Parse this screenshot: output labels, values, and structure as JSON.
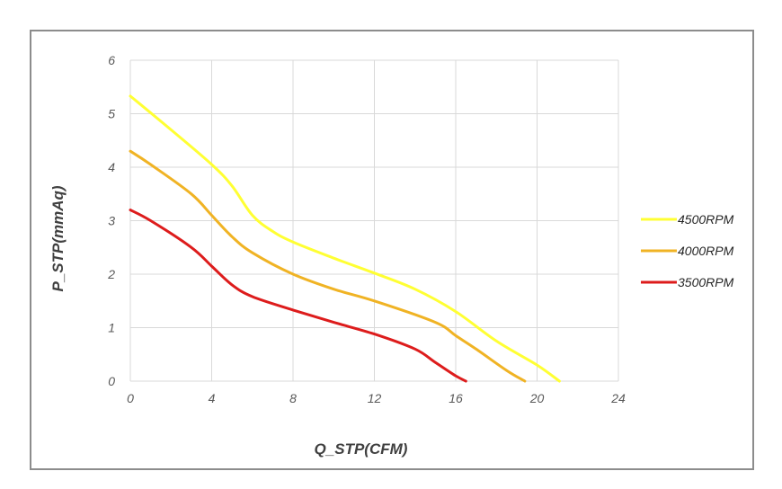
{
  "chart_data": {
    "type": "line",
    "xlabel": "Q_STP(CFM)",
    "ylabel": "P_STP(mmAq)",
    "xlim": [
      0,
      24
    ],
    "ylim": [
      0,
      6
    ],
    "x_ticks": [
      0,
      4,
      8,
      12,
      16,
      20,
      24
    ],
    "y_ticks": [
      0,
      1,
      2,
      3,
      4,
      5,
      6
    ],
    "grid": true,
    "legend_position": "right",
    "series": [
      {
        "name": "4500RPM",
        "color": "#ffff33",
        "points": [
          [
            0,
            5.33
          ],
          [
            2,
            4.7
          ],
          [
            4,
            4.05
          ],
          [
            5,
            3.65
          ],
          [
            6,
            3.1
          ],
          [
            7,
            2.8
          ],
          [
            8,
            2.6
          ],
          [
            10,
            2.3
          ],
          [
            12,
            2.02
          ],
          [
            14,
            1.72
          ],
          [
            16,
            1.3
          ],
          [
            18,
            0.75
          ],
          [
            20,
            0.3
          ],
          [
            21.1,
            0.0
          ]
        ]
      },
      {
        "name": "4000RPM",
        "color": "#f0b324",
        "points": [
          [
            0,
            4.3
          ],
          [
            1,
            4.05
          ],
          [
            3,
            3.5
          ],
          [
            4,
            3.1
          ],
          [
            5,
            2.7
          ],
          [
            6,
            2.4
          ],
          [
            8,
            2.0
          ],
          [
            10,
            1.72
          ],
          [
            12,
            1.5
          ],
          [
            15,
            1.1
          ],
          [
            16,
            0.85
          ],
          [
            17,
            0.6
          ],
          [
            18.5,
            0.2
          ],
          [
            19.4,
            0.0
          ]
        ]
      },
      {
        "name": "3500RPM",
        "color": "#dd1c1c",
        "points": [
          [
            0,
            3.2
          ],
          [
            1,
            3.0
          ],
          [
            3,
            2.5
          ],
          [
            4,
            2.15
          ],
          [
            5,
            1.8
          ],
          [
            6,
            1.58
          ],
          [
            8,
            1.33
          ],
          [
            10,
            1.1
          ],
          [
            12,
            0.88
          ],
          [
            14,
            0.6
          ],
          [
            15,
            0.35
          ],
          [
            16,
            0.1
          ],
          [
            16.5,
            0.0
          ]
        ]
      }
    ]
  }
}
